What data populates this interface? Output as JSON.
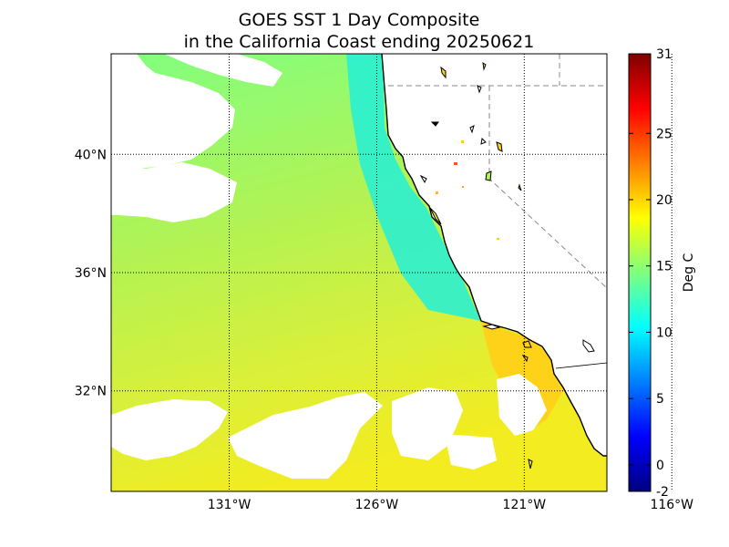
{
  "title": {
    "line1": "GOES SST 1 Day Composite",
    "line2": "in the California Coast ending 20250621"
  },
  "map": {
    "lon_range": [
      -135,
      -118.2
    ],
    "lat_range": [
      28.6,
      43.4
    ],
    "meridians": [
      -131,
      -126,
      -121,
      -116
    ],
    "parallels": [
      32,
      36,
      40
    ],
    "lon_labels": [
      "131°W",
      "126°W",
      "121°W",
      "116°W"
    ],
    "lat_labels": [
      "32°N",
      "36°N",
      "40°N"
    ],
    "ocean_gradient": [
      {
        "pos": 0,
        "color": "#80ff80"
      },
      {
        "pos": 0.45,
        "color": "#b4f252"
      },
      {
        "pos": 0.75,
        "color": "#d9f03a"
      },
      {
        "pos": 1,
        "color": "#f2ec20"
      }
    ],
    "coastal_upwelling_color": "#22f0d8",
    "socal_bight_color": "#ffd21a",
    "land_color": "#ffffff",
    "coast_color": "#000000"
  },
  "colorbar": {
    "label": "Deg C",
    "min": -2,
    "max": 31,
    "ticks": [
      -2,
      0,
      5,
      10,
      15,
      20,
      25,
      31
    ],
    "colors": [
      "#00007f",
      "#0000ff",
      "#007fff",
      "#00ffff",
      "#7fff7f",
      "#ffff00",
      "#ff7f00",
      "#ff0000",
      "#7f0000"
    ]
  }
}
